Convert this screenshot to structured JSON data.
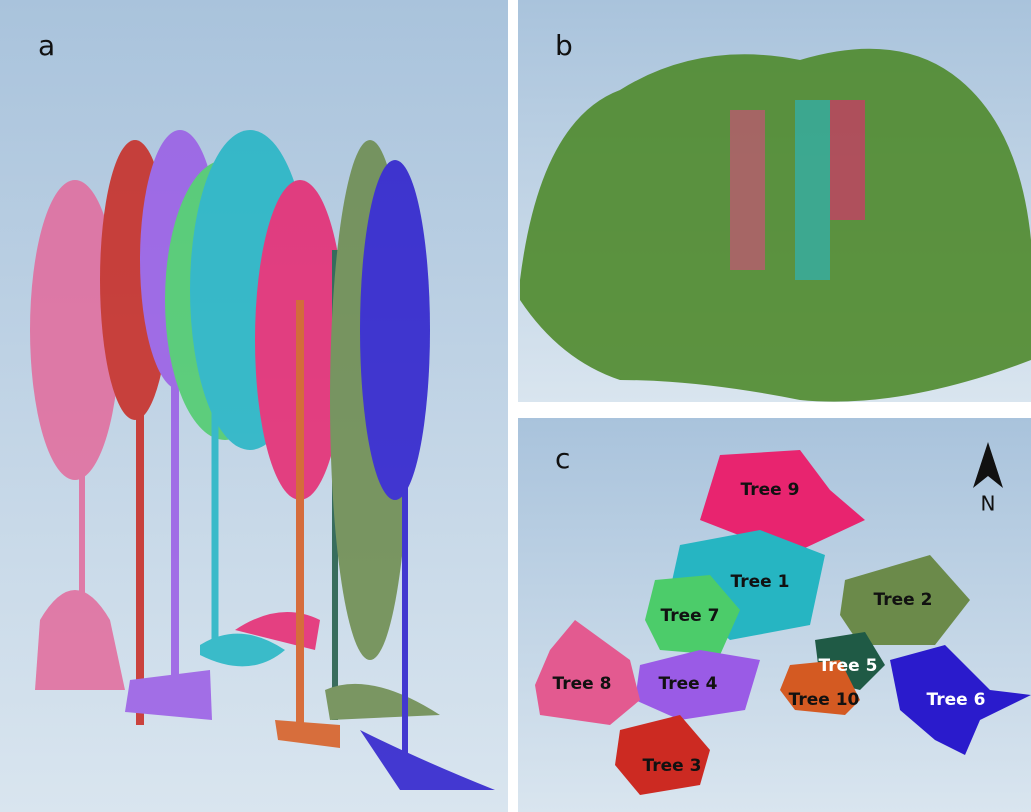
{
  "panels": [
    {
      "label": "a"
    },
    {
      "label": "b"
    },
    {
      "label": "c",
      "north": "N",
      "trees": [
        {
          "label": "Tree 9"
        },
        {
          "label": "Tree 1"
        },
        {
          "label": "Tree 2"
        },
        {
          "label": "Tree 7"
        },
        {
          "label": "Tree 5"
        },
        {
          "label": "Tree 4"
        },
        {
          "label": "Tree 8"
        },
        {
          "label": "Tree 10"
        },
        {
          "label": "Tree 6"
        },
        {
          "label": "Tree 3"
        }
      ]
    }
  ]
}
